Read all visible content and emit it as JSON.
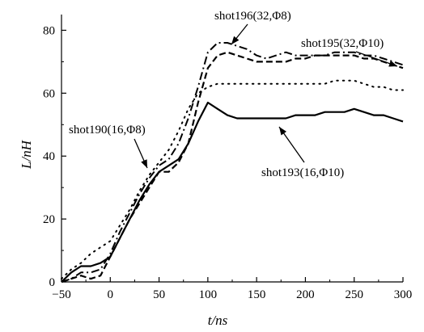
{
  "chart_data": {
    "type": "line",
    "xlabel": "t/ns",
    "ylabel": "L/nH",
    "xlim": [
      -50,
      300
    ],
    "ylim": [
      0,
      85
    ],
    "xticks": [
      -50,
      0,
      50,
      100,
      150,
      200,
      250,
      300
    ],
    "yticks": [
      0,
      20,
      40,
      60,
      80
    ],
    "grid": false,
    "series": [
      {
        "name": "shot193(16,Φ10)",
        "style": "solid",
        "x": [
          -50,
          -40,
          -30,
          -20,
          -10,
          0,
          10,
          20,
          30,
          40,
          50,
          60,
          70,
          80,
          90,
          100,
          110,
          120,
          130,
          140,
          150,
          160,
          170,
          180,
          190,
          200,
          210,
          220,
          230,
          240,
          250,
          260,
          270,
          280,
          290,
          300
        ],
        "y": [
          0,
          3,
          5,
          5,
          6,
          8,
          14,
          20,
          26,
          31,
          35,
          37,
          39,
          44,
          51,
          57,
          55,
          53,
          52,
          52,
          52,
          52,
          52,
          52,
          53,
          53,
          53,
          54,
          54,
          54,
          55,
          54,
          53,
          53,
          52,
          51
        ]
      },
      {
        "name": "shot195(32,Φ10)",
        "style": "dashed",
        "x": [
          -50,
          -40,
          -30,
          -20,
          -10,
          0,
          10,
          20,
          30,
          40,
          50,
          60,
          70,
          80,
          90,
          100,
          110,
          120,
          130,
          140,
          150,
          160,
          170,
          180,
          190,
          200,
          210,
          220,
          230,
          240,
          250,
          260,
          270,
          280,
          290,
          300
        ],
        "y": [
          0,
          1,
          2,
          1,
          2,
          8,
          14,
          20,
          25,
          30,
          35,
          35,
          38,
          44,
          57,
          68,
          72,
          73,
          72,
          71,
          70,
          70,
          70,
          70,
          71,
          71,
          72,
          72,
          72,
          72,
          72,
          71,
          71,
          70,
          69,
          68
        ]
      },
      {
        "name": "shot196(32,Φ8)",
        "style": "dashdot",
        "x": [
          -50,
          -40,
          -30,
          -20,
          -10,
          0,
          10,
          20,
          30,
          40,
          50,
          60,
          70,
          80,
          90,
          100,
          110,
          120,
          130,
          140,
          150,
          160,
          170,
          180,
          190,
          200,
          210,
          220,
          230,
          240,
          250,
          260,
          270,
          280,
          290,
          300
        ],
        "y": [
          0,
          1,
          3,
          3,
          4,
          9,
          16,
          22,
          28,
          33,
          37,
          39,
          44,
          52,
          62,
          73,
          76,
          76,
          75,
          74,
          72,
          71,
          72,
          73,
          72,
          72,
          72,
          72,
          73,
          73,
          73,
          72,
          72,
          71,
          70,
          69
        ]
      },
      {
        "name": "shot190(16,Φ8)",
        "style": "dotted",
        "x": [
          -50,
          -40,
          -30,
          -20,
          -10,
          0,
          10,
          20,
          30,
          40,
          50,
          60,
          70,
          80,
          90,
          100,
          110,
          120,
          130,
          140,
          150,
          160,
          170,
          180,
          190,
          200,
          210,
          220,
          230,
          240,
          250,
          260,
          270,
          280,
          290,
          300
        ],
        "y": [
          1,
          4,
          6,
          9,
          11,
          13,
          18,
          23,
          29,
          34,
          38,
          42,
          48,
          55,
          60,
          62,
          63,
          63,
          63,
          63,
          63,
          63,
          63,
          63,
          63,
          63,
          63,
          63,
          64,
          64,
          64,
          63,
          62,
          62,
          61,
          61
        ]
      }
    ],
    "annotations": [
      {
        "label": "shot196(32,Φ8)",
        "target_series": 2,
        "target": [
          117,
          76
        ]
      },
      {
        "label": "shot195(32,Φ10)",
        "target_series": 1,
        "target": [
          293,
          70
        ]
      },
      {
        "label": "shot190(16,Φ8)",
        "target_series": 3,
        "target": [
          46,
          36
        ]
      },
      {
        "label": "shot193(16,Φ10)",
        "target_series": 0,
        "target": [
          152,
          52
        ]
      }
    ]
  }
}
